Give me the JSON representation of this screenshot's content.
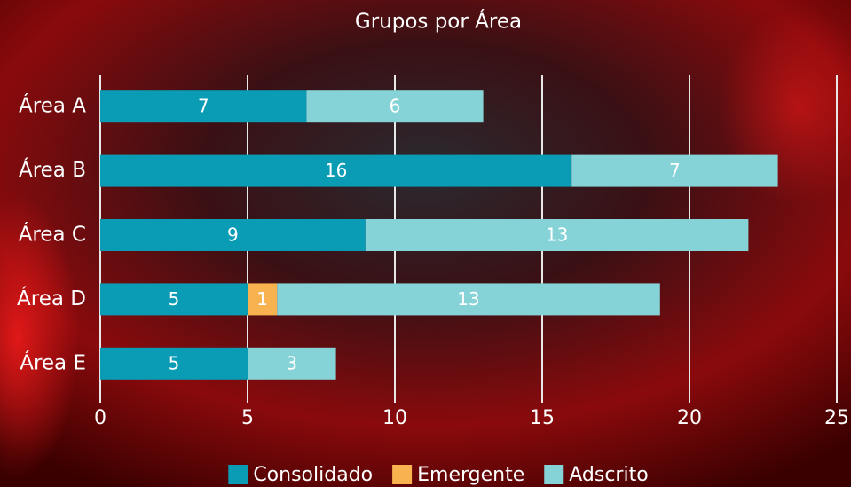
{
  "chart_data": {
    "type": "stacked-barh",
    "title": "Grupos por Área",
    "categories": [
      "Área A",
      "Área B",
      "Área C",
      "Área D",
      "Área E"
    ],
    "series": [
      {
        "name": "Consolidado",
        "color": "#0a9bb5",
        "values": [
          7,
          16,
          9,
          5,
          5
        ]
      },
      {
        "name": "Emergente",
        "color": "#f8b24f",
        "values": [
          0,
          0,
          0,
          1,
          0
        ]
      },
      {
        "name": "Adscrito",
        "color": "#86d3d7",
        "values": [
          6,
          7,
          13,
          13,
          3
        ]
      }
    ],
    "xlim": [
      0,
      25
    ],
    "xticks": [
      0,
      5,
      10,
      15,
      20,
      25
    ],
    "grid": true,
    "legend": "bottom"
  }
}
